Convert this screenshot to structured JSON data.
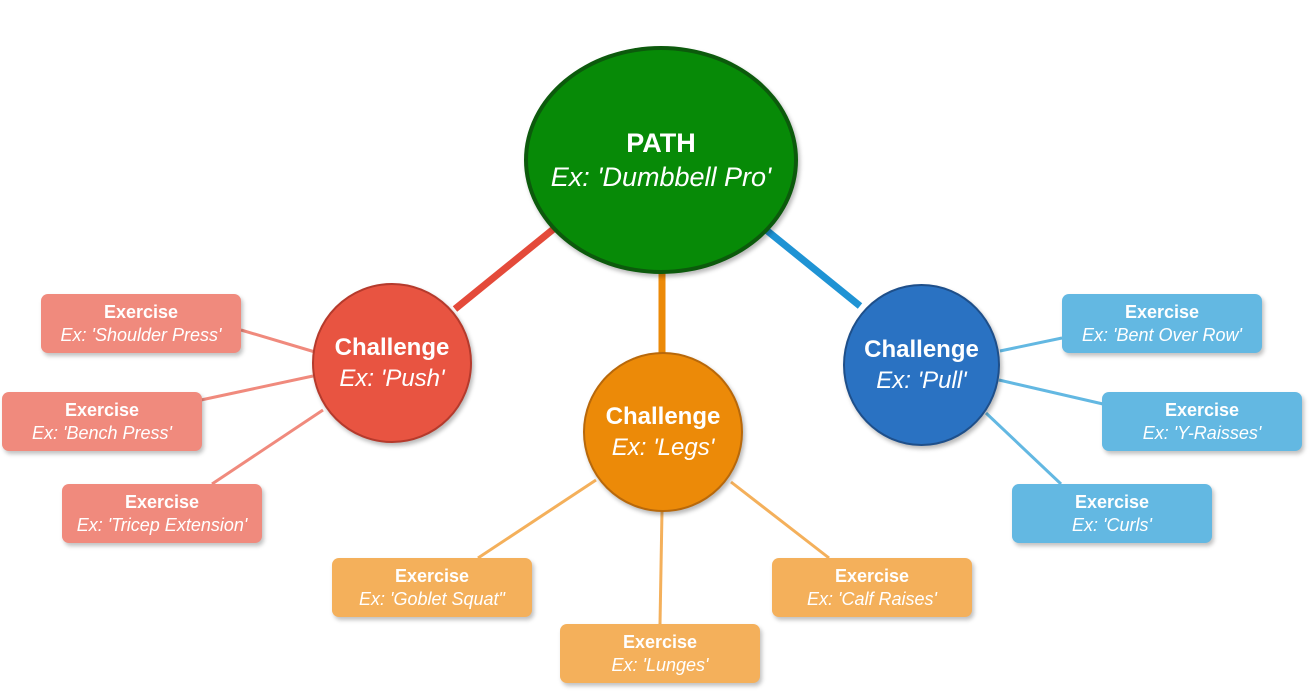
{
  "colors": {
    "path": "#078a07",
    "push": "#e85441",
    "legs": "#ec8a08",
    "pull": "#2a72c2",
    "push_light": "#f08a7d",
    "legs_light": "#f4b05b",
    "pull_light": "#63b8e2",
    "push_line": "#e44a3a",
    "legs_line": "#ec8a08",
    "pull_line": "#1f93d4"
  },
  "path": {
    "title": "PATH",
    "example": "Ex: 'Dumbbell Pro'"
  },
  "challenges": {
    "push": {
      "title": "Challenge",
      "example": "Ex: 'Push'",
      "exercises": [
        {
          "title": "Exercise",
          "example": "Ex: 'Shoulder Press'"
        },
        {
          "title": "Exercise",
          "example": "Ex: 'Bench Press'"
        },
        {
          "title": "Exercise",
          "example": "Ex: 'Tricep Extension'"
        }
      ]
    },
    "legs": {
      "title": "Challenge",
      "example": "Ex: 'Legs'",
      "exercises": [
        {
          "title": "Exercise",
          "example": "Ex: 'Goblet Squat\""
        },
        {
          "title": "Exercise",
          "example": "Ex: 'Lunges'"
        },
        {
          "title": "Exercise",
          "example": "Ex: 'Calf Raises'"
        }
      ]
    },
    "pull": {
      "title": "Challenge",
      "example": "Ex: 'Pull'",
      "exercises": [
        {
          "title": "Exercise",
          "example": "Ex: 'Bent Over Row'"
        },
        {
          "title": "Exercise",
          "example": "Ex: 'Y-Raisses'"
        },
        {
          "title": "Exercise",
          "example": "Ex: 'Curls'"
        }
      ]
    }
  }
}
